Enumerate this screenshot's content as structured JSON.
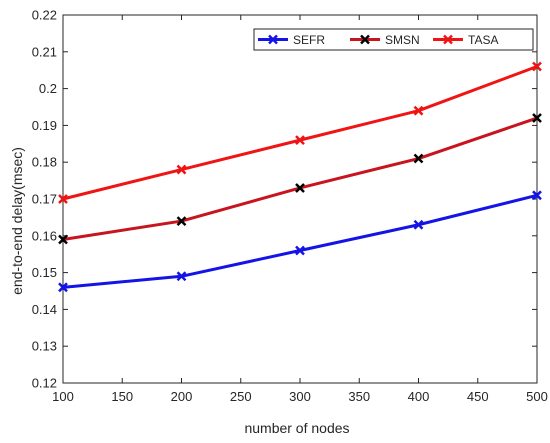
{
  "chart_data": {
    "type": "line",
    "xlabel": "number of nodes",
    "ylabel": "end-to-end delay(msec)",
    "x": [
      100,
      200,
      300,
      400,
      500
    ],
    "xlim": [
      100,
      500
    ],
    "ylim": [
      0.12,
      0.22
    ],
    "xticks": [
      100,
      150,
      200,
      250,
      300,
      350,
      400,
      450,
      500
    ],
    "xtick_labels": [
      "100",
      "150",
      "200",
      "250",
      "300",
      "350",
      "400",
      "450",
      "500"
    ],
    "yticks": [
      0.12,
      0.13,
      0.14,
      0.15,
      0.16,
      0.17,
      0.18,
      0.19,
      0.2,
      0.21,
      0.22
    ],
    "ytick_labels": [
      "0.12",
      "0.13",
      "0.14",
      "0.15",
      "0.16",
      "0.17",
      "0.18",
      "0.19",
      "0.2",
      "0.21",
      "0.22"
    ],
    "grid": false,
    "legend_position": "top-right",
    "series": [
      {
        "name": "SEFR",
        "values": [
          0.146,
          0.149,
          0.156,
          0.163,
          0.171
        ],
        "color": "#1414e6",
        "marker_color": "#1414e6"
      },
      {
        "name": "SMSN",
        "values": [
          0.159,
          0.164,
          0.173,
          0.181,
          0.192
        ],
        "color": "#c8141e",
        "marker_color": "#000000"
      },
      {
        "name": "TASA",
        "values": [
          0.17,
          0.178,
          0.186,
          0.194,
          0.206
        ],
        "color": "#f01414",
        "marker_color": "#f01414"
      }
    ]
  }
}
